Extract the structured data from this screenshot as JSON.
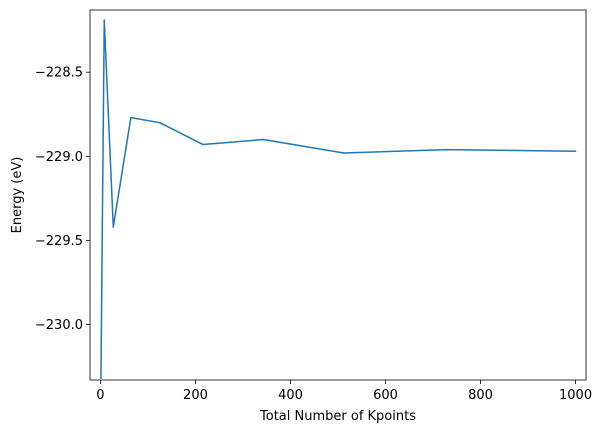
{
  "chart_data": {
    "type": "line",
    "title": "",
    "xlabel": "Total Number of Kpoints",
    "ylabel": "Energy (eV)",
    "xlim": [
      -22,
      1022
    ],
    "ylim": [
      -230.33,
      -228.13
    ],
    "xticks": [
      0,
      200,
      400,
      600,
      800,
      1000
    ],
    "xtick_labels": [
      "0",
      "200",
      "400",
      "600",
      "800",
      "1000"
    ],
    "yticks": [
      -228.5,
      -229.0,
      -229.5,
      -230.0
    ],
    "ytick_labels": [
      "−228.5",
      "−229.0",
      "−229.5",
      "−230.0"
    ],
    "grid": false,
    "series": [
      {
        "color": "#1f77b4",
        "x": [
          1,
          8,
          27,
          64,
          125,
          216,
          343,
          512,
          729,
          1000
        ],
        "y": [
          -230.32,
          -228.19,
          -229.42,
          -228.77,
          -228.8,
          -228.93,
          -228.9,
          -228.98,
          -228.96,
          -228.97
        ]
      }
    ]
  }
}
